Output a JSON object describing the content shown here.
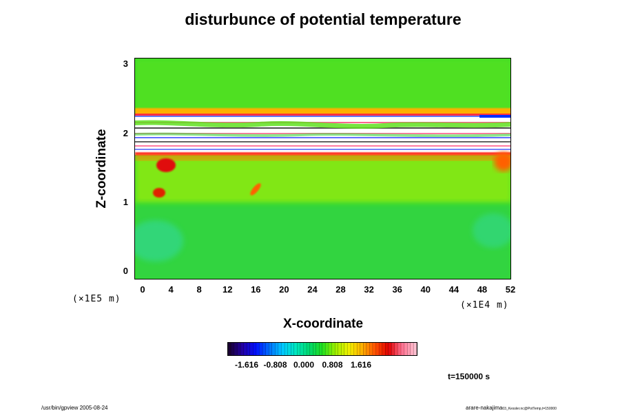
{
  "title": "disturbunce of potential temperature",
  "chart_data": {
    "type": "heatmap",
    "title": "disturbunce of potential temperature",
    "xlabel": "X-coordinate",
    "ylabel": "Z-coordinate",
    "x_ticks": [
      "0",
      "4",
      "8",
      "12",
      "16",
      "20",
      "24",
      "28",
      "32",
      "36",
      "40",
      "44",
      "48",
      "52"
    ],
    "y_ticks": [
      "0",
      "1",
      "2",
      "3"
    ],
    "x_scale_note": "(×1E4 m)",
    "y_scale_note": "(×1E5 m)",
    "xlim": [
      0,
      52
    ],
    "ylim": [
      0,
      3
    ],
    "colorbar": {
      "ticks": [
        "-1.616",
        "-0.808",
        "0.000",
        "0.808",
        "1.616"
      ],
      "colors": [
        "#1a0033",
        "#2400a8",
        "#0010ff",
        "#0070ff",
        "#00c8ff",
        "#00e8c0",
        "#00d870",
        "#20e020",
        "#a0f000",
        "#f0f000",
        "#ffb000",
        "#ff5000",
        "#e00000",
        "#ff7090",
        "#ffc0d0"
      ]
    },
    "time_label": "t=150000 s"
  },
  "footer": {
    "left": "/usr/bin/gpview 2005-08-24",
    "right": "arare-nakajima",
    "right_small": "03_Kessler.nc@PotTemp,t=150000"
  }
}
